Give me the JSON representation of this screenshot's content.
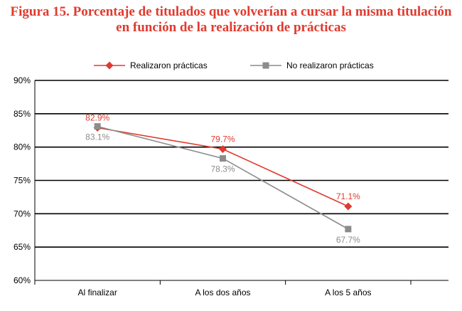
{
  "title": {
    "line1": "Figura 15. Porcentaje de titulados que volverían a cursar la misma titulación",
    "line2": "en función de la realización de prácticas"
  },
  "chart_data": {
    "type": "line",
    "title": "Figura 15. Porcentaje de titulados que volverían a cursar la misma titulación en función de la realización de prácticas",
    "categories": [
      "Al finalizar",
      "A los dos años",
      "A los 5 años"
    ],
    "series": [
      {
        "name": "Realizaron prácticas",
        "values": [
          82.9,
          79.7,
          71.1
        ],
        "labels": [
          "82.9%",
          "79.7%",
          "71.1%"
        ],
        "color": "#e03a2e",
        "marker": "diamond"
      },
      {
        "name": "No realizaron prácticas",
        "values": [
          83.1,
          78.3,
          67.7
        ],
        "labels": [
          "83.1%",
          "78.3%",
          "67.7%"
        ],
        "color": "#8c8c8c",
        "marker": "square"
      }
    ],
    "ylim": [
      60,
      90
    ],
    "yticks": [
      60,
      65,
      70,
      75,
      80,
      85,
      90
    ],
    "ytick_labels": [
      "60%",
      "65%",
      "70%",
      "75%",
      "80%",
      "85%",
      "90%"
    ],
    "grid": true,
    "legend": "top-center",
    "xlabel": "",
    "ylabel": ""
  }
}
